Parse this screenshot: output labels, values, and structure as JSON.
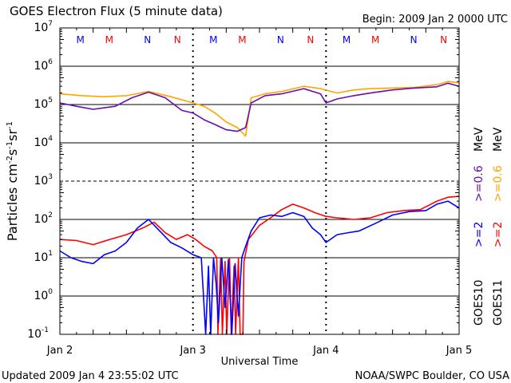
{
  "chart_data": {
    "type": "line",
    "title": "GOES Electron Flux (5 minute data)",
    "begin": "Begin: 2009 Jan 2 0000 UTC",
    "xlabel": "Universal Time",
    "ylabel": "Particles cm⁻²s⁻¹sr⁻¹",
    "ylabel_parts": [
      "Particles cm",
      "-2",
      "s",
      "-1",
      "sr",
      "-1"
    ],
    "xlim_hours": [
      0,
      72
    ],
    "ylim": [
      0.1,
      10000000
    ],
    "yscale": "log",
    "y_tick_exponents": [
      -1,
      0,
      1,
      2,
      3,
      4,
      5,
      6,
      7
    ],
    "x_ticks": [
      {
        "hour": 0,
        "label": "Jan 2"
      },
      {
        "hour": 24,
        "label": "Jan 3"
      },
      {
        "hour": 48,
        "label": "Jan 4"
      },
      {
        "hour": 72,
        "label": "Jan 5"
      }
    ],
    "threshold_line": 1000,
    "legend": [
      {
        "sat": "GOES10",
        "label": ">=2",
        "unit": "",
        "color": "#0000ff"
      },
      {
        "sat": "GOES11",
        "label": ">=2",
        "unit": "",
        "color": "#ff0000"
      },
      {
        "sat": "",
        "label": ">=0.6",
        "unit": "MeV",
        "color": "#6a0dad"
      },
      {
        "sat": "",
        "label": ">=0.6",
        "unit": "MeV",
        "color": "#ffa500"
      }
    ],
    "legend_text": {
      "g10": "GOES10",
      "g11": "GOES11",
      "e2": ">=2",
      "e06": ">=0.6",
      "mev": "MeV"
    },
    "markers": [
      {
        "label": "M",
        "hour": 3.7,
        "color": "#0000ff"
      },
      {
        "label": "M",
        "hour": 8.9,
        "color": "#ff0000"
      },
      {
        "label": "N",
        "hour": 15.8,
        "color": "#0000ff"
      },
      {
        "label": "N",
        "hour": 21.2,
        "color": "#ff0000"
      },
      {
        "label": "M",
        "hour": 27.7,
        "color": "#0000ff"
      },
      {
        "label": "M",
        "hour": 32.9,
        "color": "#ff0000"
      },
      {
        "label": "N",
        "hour": 39.8,
        "color": "#0000ff"
      },
      {
        "label": "N",
        "hour": 45.2,
        "color": "#ff0000"
      },
      {
        "label": "M",
        "hour": 51.7,
        "color": "#0000ff"
      },
      {
        "label": "M",
        "hour": 56.9,
        "color": "#ff0000"
      },
      {
        "label": "N",
        "hour": 63.8,
        "color": "#0000ff"
      },
      {
        "label": "N",
        "hour": 69.2,
        "color": "#ff0000"
      }
    ],
    "series": [
      {
        "name": "GOES11 >=0.6 MeV",
        "color": "#ffa500",
        "points": [
          [
            0,
            190000
          ],
          [
            4,
            170000
          ],
          [
            8,
            160000
          ],
          [
            12,
            170000
          ],
          [
            16,
            220000
          ],
          [
            20,
            160000
          ],
          [
            24,
            110000
          ],
          [
            26,
            90000
          ],
          [
            28,
            60000
          ],
          [
            30,
            35000
          ],
          [
            32,
            25000
          ],
          [
            33.5,
            15000
          ],
          [
            34.5,
            150000
          ],
          [
            37,
            190000
          ],
          [
            40,
            220000
          ],
          [
            44,
            300000
          ],
          [
            47,
            260000
          ],
          [
            50,
            200000
          ],
          [
            53,
            240000
          ],
          [
            56,
            260000
          ],
          [
            60,
            270000
          ],
          [
            64,
            280000
          ],
          [
            68,
            330000
          ],
          [
            70,
            400000
          ],
          [
            72,
            370000
          ]
        ]
      },
      {
        "name": "GOES10 >=0.6 MeV",
        "color": "#6a0dad",
        "points": [
          [
            0,
            110000
          ],
          [
            3,
            90000
          ],
          [
            6,
            75000
          ],
          [
            10,
            90000
          ],
          [
            13,
            150000
          ],
          [
            16,
            210000
          ],
          [
            19,
            150000
          ],
          [
            22,
            70000
          ],
          [
            24,
            60000
          ],
          [
            26,
            40000
          ],
          [
            28,
            30000
          ],
          [
            30,
            22000
          ],
          [
            32,
            20000
          ],
          [
            33.5,
            25000
          ],
          [
            34.5,
            110000
          ],
          [
            37,
            170000
          ],
          [
            40,
            190000
          ],
          [
            44,
            260000
          ],
          [
            47,
            190000
          ],
          [
            48,
            110000
          ],
          [
            50,
            140000
          ],
          [
            53,
            170000
          ],
          [
            56,
            200000
          ],
          [
            60,
            240000
          ],
          [
            64,
            270000
          ],
          [
            68,
            290000
          ],
          [
            70,
            360000
          ],
          [
            72,
            300000
          ]
        ]
      },
      {
        "name": "GOES11 >=2 MeV",
        "color": "#ff0000",
        "points": [
          [
            0,
            30
          ],
          [
            3,
            28
          ],
          [
            6,
            22
          ],
          [
            9,
            30
          ],
          [
            12,
            40
          ],
          [
            15,
            60
          ],
          [
            17,
            85
          ],
          [
            19,
            45
          ],
          [
            21,
            30
          ],
          [
            23,
            40
          ],
          [
            24.5,
            30
          ],
          [
            26,
            20
          ],
          [
            27.5,
            15
          ],
          [
            28.3,
            10
          ],
          [
            28.5,
            0.1
          ],
          [
            29,
            10
          ],
          [
            29.3,
            0.1
          ],
          [
            29.8,
            8
          ],
          [
            30.1,
            0.1
          ],
          [
            30.6,
            10
          ],
          [
            30.9,
            0.1
          ],
          [
            31.4,
            6
          ],
          [
            31.7,
            0.1
          ],
          [
            32.2,
            10
          ],
          [
            32.5,
            0.1
          ],
          [
            33,
            0.1
          ],
          [
            33.2,
            8
          ],
          [
            34,
            30
          ],
          [
            36,
            70
          ],
          [
            38,
            110
          ],
          [
            40,
            180
          ],
          [
            42,
            250
          ],
          [
            44,
            200
          ],
          [
            46,
            150
          ],
          [
            48,
            120
          ],
          [
            50,
            110
          ],
          [
            53,
            100
          ],
          [
            56,
            110
          ],
          [
            59,
            150
          ],
          [
            62,
            170
          ],
          [
            65,
            180
          ],
          [
            68,
            300
          ],
          [
            70,
            380
          ],
          [
            72,
            400
          ]
        ]
      },
      {
        "name": "GOES10 >=2 MeV",
        "color": "#0000ff",
        "points": [
          [
            0,
            15
          ],
          [
            2,
            10
          ],
          [
            4,
            8
          ],
          [
            6,
            7
          ],
          [
            8,
            12
          ],
          [
            10,
            15
          ],
          [
            12,
            25
          ],
          [
            14,
            60
          ],
          [
            16,
            100
          ],
          [
            18,
            50
          ],
          [
            20,
            25
          ],
          [
            22,
            18
          ],
          [
            24,
            12
          ],
          [
            25.5,
            10
          ],
          [
            26.3,
            0.1
          ],
          [
            26.8,
            6
          ],
          [
            27.2,
            0.1
          ],
          [
            27.7,
            10
          ],
          [
            28.2,
            2
          ],
          [
            28.6,
            0.2
          ],
          [
            29.2,
            10
          ],
          [
            29.8,
            0.5
          ],
          [
            30.4,
            9
          ],
          [
            31,
            0.1
          ],
          [
            31.6,
            7
          ],
          [
            32.2,
            0.3
          ],
          [
            32.8,
            10
          ],
          [
            33.5,
            20
          ],
          [
            34.5,
            50
          ],
          [
            36,
            110
          ],
          [
            38,
            130
          ],
          [
            40,
            120
          ],
          [
            42,
            150
          ],
          [
            44,
            120
          ],
          [
            45.5,
            60
          ],
          [
            47,
            40
          ],
          [
            48,
            25
          ],
          [
            50,
            40
          ],
          [
            52,
            45
          ],
          [
            54,
            50
          ],
          [
            57,
            80
          ],
          [
            60,
            130
          ],
          [
            63,
            160
          ],
          [
            66,
            170
          ],
          [
            68,
            250
          ],
          [
            70,
            300
          ],
          [
            72,
            200
          ]
        ]
      }
    ]
  },
  "footer": {
    "updated": "Updated 2009 Jan  4 23:55:02 UTC",
    "credit": "NOAA/SWPC Boulder, CO USA"
  }
}
